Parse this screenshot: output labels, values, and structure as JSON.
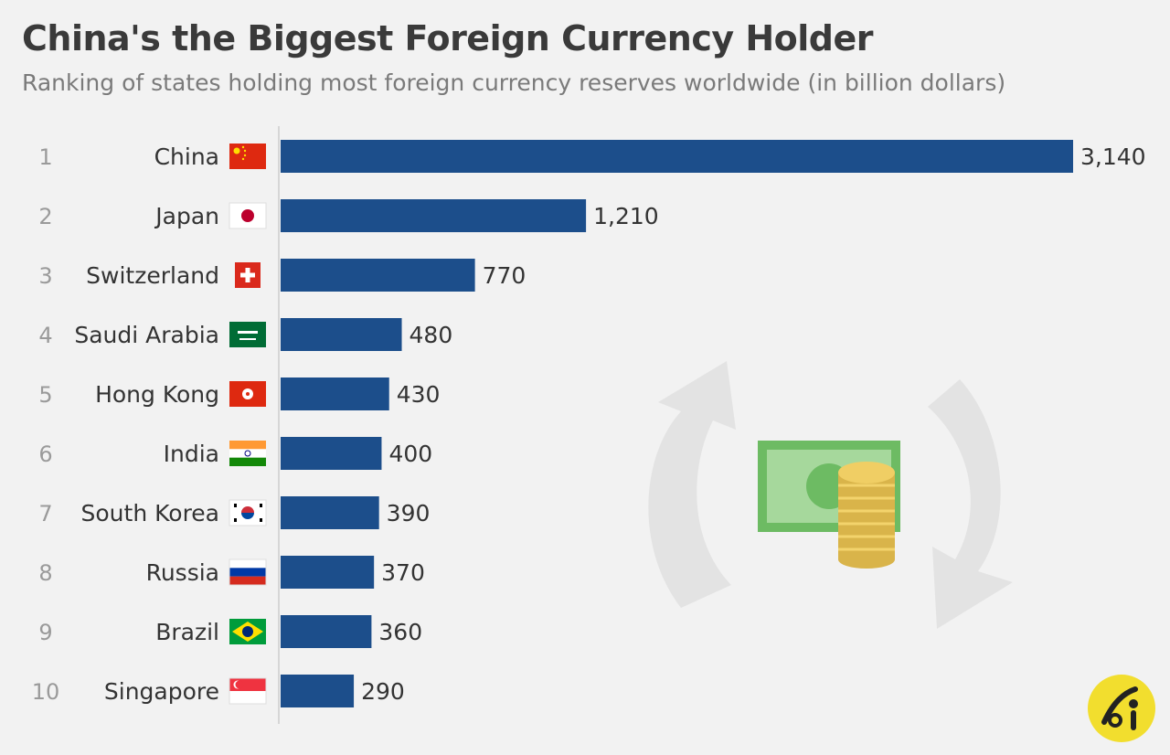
{
  "title": "China's the Biggest Foreign Currency Holder",
  "subtitle": "Ranking of states holding most foreign currency reserves worldwide (in billion dollars)",
  "colors": {
    "bar": "#1c4e8b",
    "background": "#f2f2f2",
    "axis": "#cccccc"
  },
  "chart_data": {
    "type": "bar",
    "orientation": "horizontal",
    "ranks": [
      "1",
      "2",
      "3",
      "4",
      "5",
      "6",
      "7",
      "8",
      "9",
      "10"
    ],
    "categories": [
      "China",
      "Japan",
      "Switzerland",
      "Saudi Arabia",
      "Hong Kong",
      "India",
      "South Korea",
      "Russia",
      "Brazil",
      "Singapore"
    ],
    "values": [
      3140,
      1210,
      770,
      480,
      430,
      400,
      390,
      370,
      360,
      290
    ],
    "value_labels": [
      "3,140",
      "1,210",
      "770",
      "480",
      "430",
      "400",
      "390",
      "370",
      "360",
      "290"
    ],
    "flag_icons": [
      "china-flag-icon",
      "japan-flag-icon",
      "switzerland-flag-icon",
      "saudi-arabia-flag-icon",
      "hong-kong-flag-icon",
      "india-flag-icon",
      "south-korea-flag-icon",
      "russia-flag-icon",
      "brazil-flag-icon",
      "singapore-flag-icon"
    ],
    "xlim": [
      0,
      3140
    ],
    "grid": false,
    "legend": "none"
  }
}
